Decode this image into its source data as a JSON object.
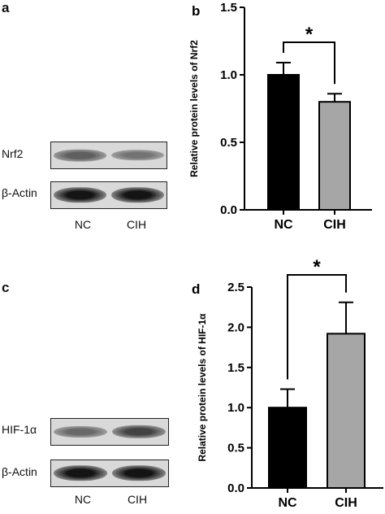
{
  "panels": {
    "a": {
      "letter": "a",
      "blots": [
        {
          "label": "Nrf2",
          "intensity": [
            0.55,
            0.45
          ]
        },
        {
          "label": "β-Actin",
          "intensity": [
            0.95,
            0.95
          ]
        }
      ],
      "lanes": [
        "NC",
        "CIH"
      ]
    },
    "c": {
      "letter": "c",
      "blots": [
        {
          "label": "HIF-1α",
          "intensity": [
            0.5,
            0.7
          ]
        },
        {
          "label": "β-Actin",
          "intensity": [
            0.95,
            0.95
          ]
        }
      ],
      "lanes": [
        "NC",
        "CIH"
      ]
    }
  },
  "chart_data": [
    {
      "panel": "b",
      "type": "bar",
      "categories": [
        "NC",
        "CIH"
      ],
      "values": [
        1.0,
        0.8
      ],
      "errors": [
        0.09,
        0.06
      ],
      "colors": [
        "#000000",
        "#a6a6a6"
      ],
      "ylabel": "Relative protein levels of Nrf2",
      "ylim": [
        0,
        1.5
      ],
      "yticks": [
        "0.0",
        "0.5",
        "1.0",
        "1.5"
      ],
      "significance": "*",
      "grid": false
    },
    {
      "panel": "d",
      "type": "bar",
      "categories": [
        "NC",
        "CIH"
      ],
      "values": [
        1.0,
        1.92
      ],
      "errors": [
        0.23,
        0.39
      ],
      "colors": [
        "#000000",
        "#a6a6a6"
      ],
      "ylabel": "Relative protein levels of HIF-1α",
      "ylim": [
        0,
        2.5
      ],
      "yticks": [
        "0.0",
        "0.5",
        "1.0",
        "1.5",
        "2.0",
        "2.5"
      ],
      "significance": "*",
      "grid": false
    }
  ]
}
